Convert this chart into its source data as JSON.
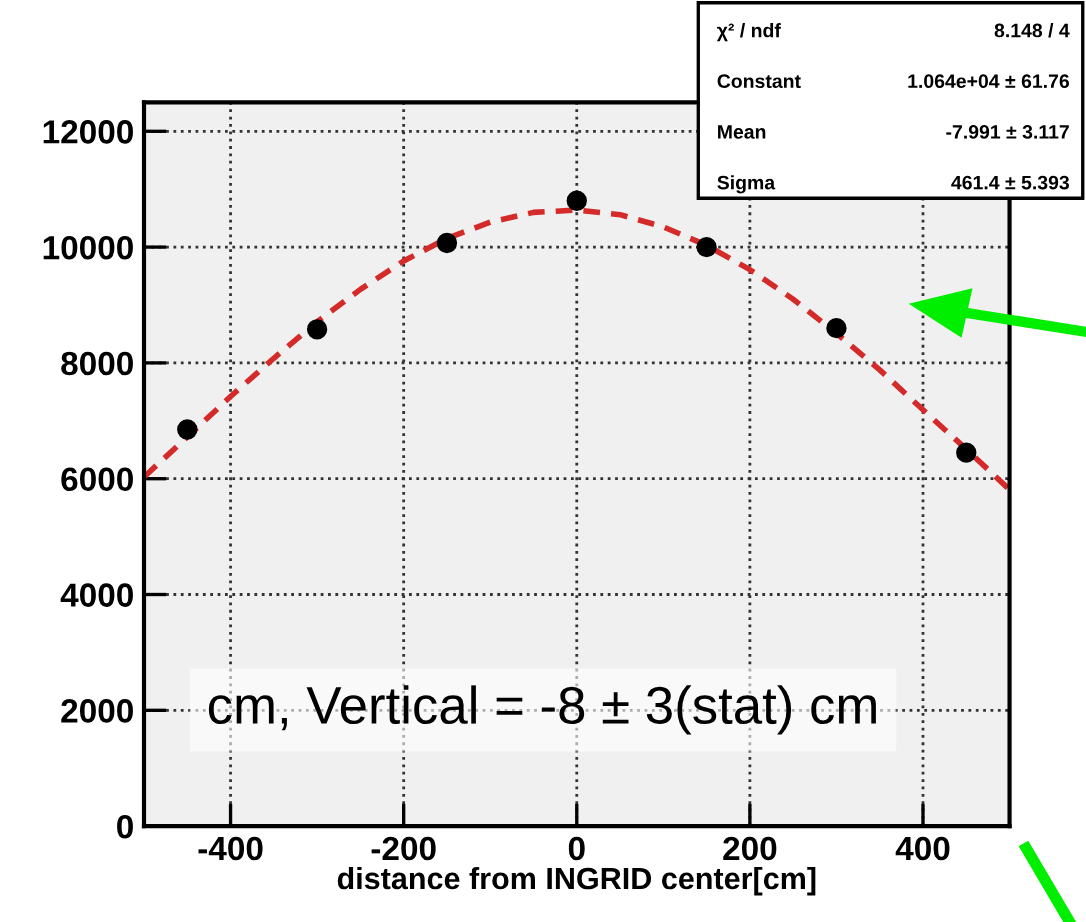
{
  "chart_data": {
    "type": "scatter",
    "xlabel": "distance from INGRID center[cm]",
    "xlim": [
      -500,
      500
    ],
    "xticks": [
      -400,
      -200,
      0,
      200,
      400
    ],
    "ylim": [
      0,
      12500
    ],
    "yticks": [
      0,
      2000,
      4000,
      6000,
      8000,
      10000,
      12000
    ],
    "grid": true,
    "series": [
      {
        "marker": "circle",
        "color": "#000000",
        "x": [
          -450,
          -300,
          -150,
          0,
          150,
          300,
          450
        ],
        "values": [
          6850,
          8580,
          10070,
          10800,
          10000,
          8600,
          6450
        ]
      },
      {
        "type": "line",
        "color": "#d42a2a",
        "line_style": "dashed",
        "marker": "none",
        "x": [
          -500,
          -450,
          -400,
          -350,
          -300,
          -250,
          -200,
          -150,
          -100,
          -50,
          0,
          50,
          100,
          150,
          200,
          250,
          300,
          350,
          400,
          450,
          500
        ],
        "values": [
          6030,
          6720,
          7420,
          8080,
          8710,
          9270,
          9760,
          10150,
          10430,
          10600,
          10640,
          10560,
          10350,
          10030,
          9610,
          9100,
          8510,
          7880,
          7190,
          6510,
          5810
        ]
      }
    ],
    "annotations": [
      "χ² / ndf",
      "8.148 / 4",
      "Constant",
      "1.064e+04 ± 61.76",
      "Mean",
      "-7.991 ± 3.117",
      "Sigma",
      "461.4 ± 5.393",
      "cm, Vertical = -8 ± 3(stat) cm"
    ]
  }
}
